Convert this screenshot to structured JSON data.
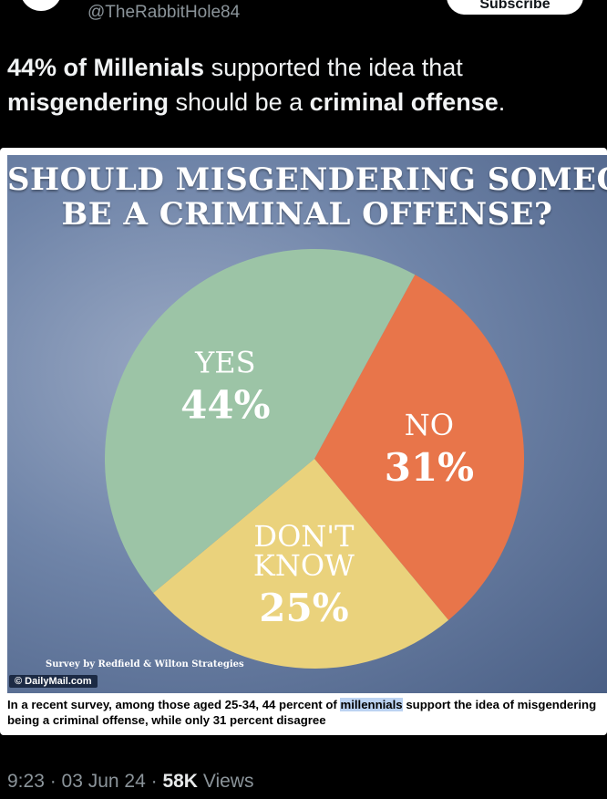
{
  "header": {
    "handle": "@TheRabbitHole84",
    "subscribe_label": "Subscribe"
  },
  "tweet": {
    "part1": "44% of Millenials",
    "part2": " supported the idea that ",
    "part3": "misgendering",
    "part4": " should be a ",
    "part5": "criminal offense",
    "part6": "."
  },
  "chart_data": {
    "type": "pie",
    "title_line1": "SHOULD MISGENDERING SOMEONE",
    "title_line2": "BE A CRIMINAL OFFENSE?",
    "slices": [
      {
        "label": "NO",
        "label2": "",
        "value": 31,
        "value_label": "31%",
        "color": "#e8754a"
      },
      {
        "label": "DON'T",
        "label2": "KNOW",
        "value": 25,
        "value_label": "25%",
        "color": "#ead27c"
      },
      {
        "label": "YES",
        "label2": "",
        "value": 44,
        "value_label": "44%",
        "color": "#9cc4a6"
      }
    ]
  },
  "media": {
    "source_note": "Survey by Redfield & Wilton Strategies",
    "brand": "© DailyMail.com",
    "caption_pre": "In a recent survey, among those aged 25-34, 44 percent of ",
    "caption_highlight": "millennials",
    "caption_post": " support the idea of misgendering being a criminal offense, while only 31 percent disagree"
  },
  "footer": {
    "time": "9:23 · 03 Jun 24 · ",
    "views_count": "58K",
    "views_label": " Views"
  }
}
